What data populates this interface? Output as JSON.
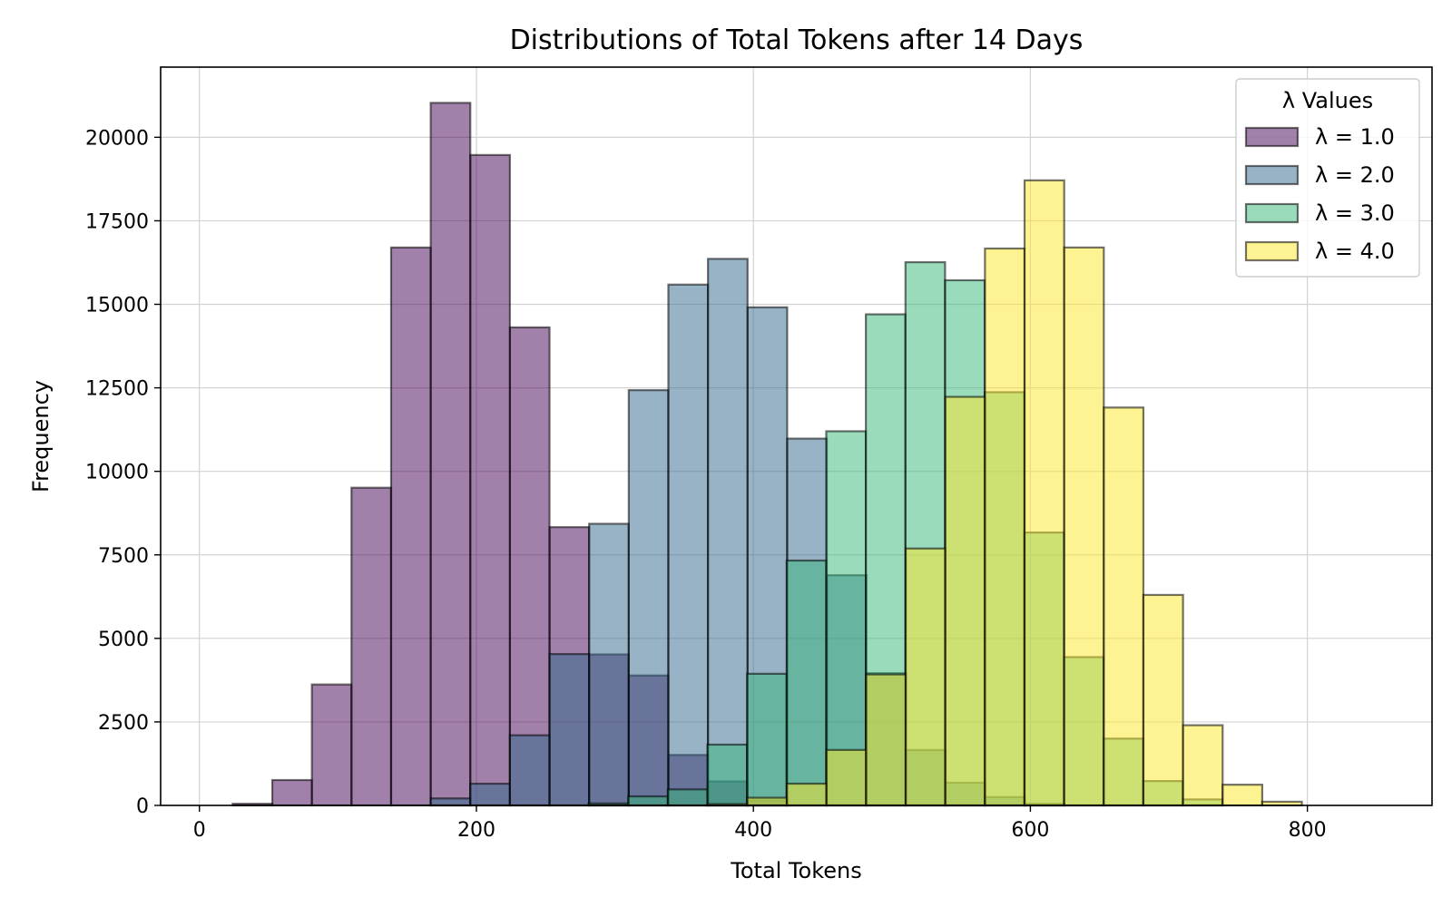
{
  "chart_data": {
    "type": "bar",
    "subtype": "overlapping-histogram",
    "title": "Distributions of Total Tokens after 14 Days",
    "xlabel": "Total Tokens",
    "ylabel": "Frequency",
    "xlim": [
      -28,
      890
    ],
    "ylim": [
      0,
      22100
    ],
    "xticks": [
      0,
      200,
      400,
      600,
      800
    ],
    "yticks": [
      0,
      2500,
      5000,
      7500,
      10000,
      12500,
      15000,
      17500,
      20000
    ],
    "grid": true,
    "legend": {
      "title": "λ Values",
      "placement": "top-right"
    },
    "bin_width": 28.6,
    "series": [
      {
        "name": "λ = 1.0",
        "color": "#440154",
        "alpha": 0.5,
        "x_start": 24,
        "values": [
          50,
          760,
          3620,
          9510,
          16700,
          21030,
          19470,
          14310,
          8330,
          4520,
          3890,
          1510,
          720,
          150
        ]
      },
      {
        "name": "λ = 2.0",
        "color": "#31688e",
        "alpha": 0.5,
        "x_start": 167,
        "values": [
          210,
          650,
          2100,
          4530,
          8430,
          12430,
          15590,
          16360,
          14910,
          10980,
          6890,
          3960,
          1660,
          680,
          250,
          50
        ]
      },
      {
        "name": "λ = 3.0",
        "color": "#35b779",
        "alpha": 0.5,
        "x_start": 281,
        "values": [
          60,
          270,
          480,
          1820,
          3940,
          7330,
          11200,
          14700,
          16260,
          15720,
          12370,
          8170,
          4440,
          2000,
          730,
          180
        ]
      },
      {
        "name": "λ = 4.0",
        "color": "#fde725",
        "alpha": 0.5,
        "x_start": 367,
        "values": [
          40,
          230,
          650,
          1660,
          3920,
          7690,
          12230,
          16670,
          18710,
          16700,
          11910,
          6300,
          2400,
          620,
          110
        ]
      }
    ]
  }
}
